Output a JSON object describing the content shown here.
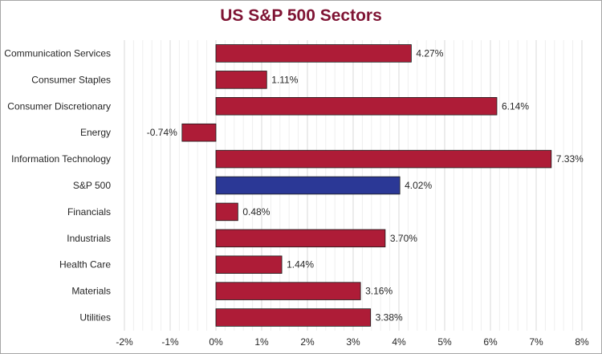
{
  "chart_data": {
    "type": "bar",
    "orientation": "horizontal",
    "title": "US S&P 500 Sectors",
    "xlabel": "",
    "ylabel": "",
    "xlim": [
      -2,
      8
    ],
    "x_ticks": [
      {
        "value": -2,
        "label": "-2%"
      },
      {
        "value": -1,
        "label": "-1%"
      },
      {
        "value": 0,
        "label": "0%"
      },
      {
        "value": 1,
        "label": "1%"
      },
      {
        "value": 2,
        "label": "2%"
      },
      {
        "value": 3,
        "label": "3%"
      },
      {
        "value": 4,
        "label": "4%"
      },
      {
        "value": 5,
        "label": "5%"
      },
      {
        "value": 6,
        "label": "6%"
      },
      {
        "value": 7,
        "label": "7%"
      },
      {
        "value": 8,
        "label": "8%"
      }
    ],
    "grid": "vertical",
    "legend": "none",
    "bars": [
      {
        "category": "Communication Services",
        "value": 4.27,
        "label": "4.27%",
        "color": "#ae1c37"
      },
      {
        "category": "Consumer Staples",
        "value": 1.11,
        "label": "1.11%",
        "color": "#ae1c37"
      },
      {
        "category": "Consumer Discretionary",
        "value": 6.14,
        "label": "6.14%",
        "color": "#ae1c37"
      },
      {
        "category": "Energy",
        "value": -0.74,
        "label": "-0.74%",
        "color": "#ae1c37"
      },
      {
        "category": "Information Technology",
        "value": 7.33,
        "label": "7.33%",
        "color": "#ae1c37"
      },
      {
        "category": "S&P 500",
        "value": 4.02,
        "label": "4.02%",
        "color": "#2b3896"
      },
      {
        "category": "Financials",
        "value": 0.48,
        "label": "0.48%",
        "color": "#ae1c37"
      },
      {
        "category": "Industrials",
        "value": 3.7,
        "label": "3.70%",
        "color": "#ae1c37"
      },
      {
        "category": "Health Care",
        "value": 1.44,
        "label": "1.44%",
        "color": "#ae1c37"
      },
      {
        "category": "Materials",
        "value": 3.16,
        "label": "3.16%",
        "color": "#ae1c37"
      },
      {
        "category": "Utilities",
        "value": 3.38,
        "label": "3.38%",
        "color": "#ae1c37"
      }
    ]
  }
}
